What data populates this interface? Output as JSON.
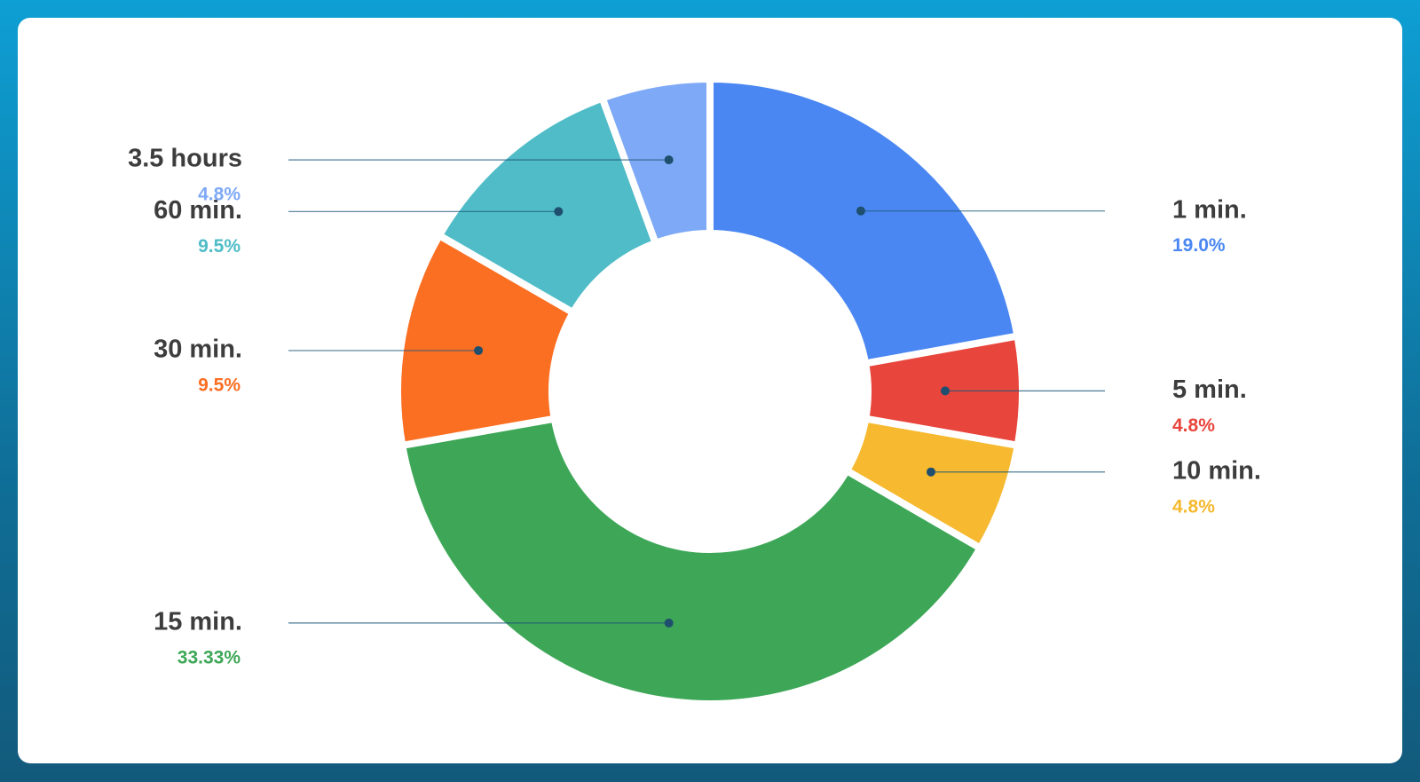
{
  "chart_data": {
    "type": "donut",
    "categories": [
      "1 min.",
      "5 min.",
      "10 min.",
      "15 min.",
      "30 min.",
      "60 min.",
      "3.5 hours"
    ],
    "values": [
      19.0,
      4.8,
      4.8,
      33.33,
      9.5,
      9.5,
      4.8
    ],
    "value_labels": [
      "19.0%",
      "4.8%",
      "4.8%",
      "33.33%",
      "9.5%",
      "9.5%",
      "4.8%"
    ],
    "colors": [
      "#4a87f2",
      "#e8453c",
      "#f6b92f",
      "#3da757",
      "#fb6f22",
      "#4fbcc7",
      "#7ea9f6"
    ]
  }
}
